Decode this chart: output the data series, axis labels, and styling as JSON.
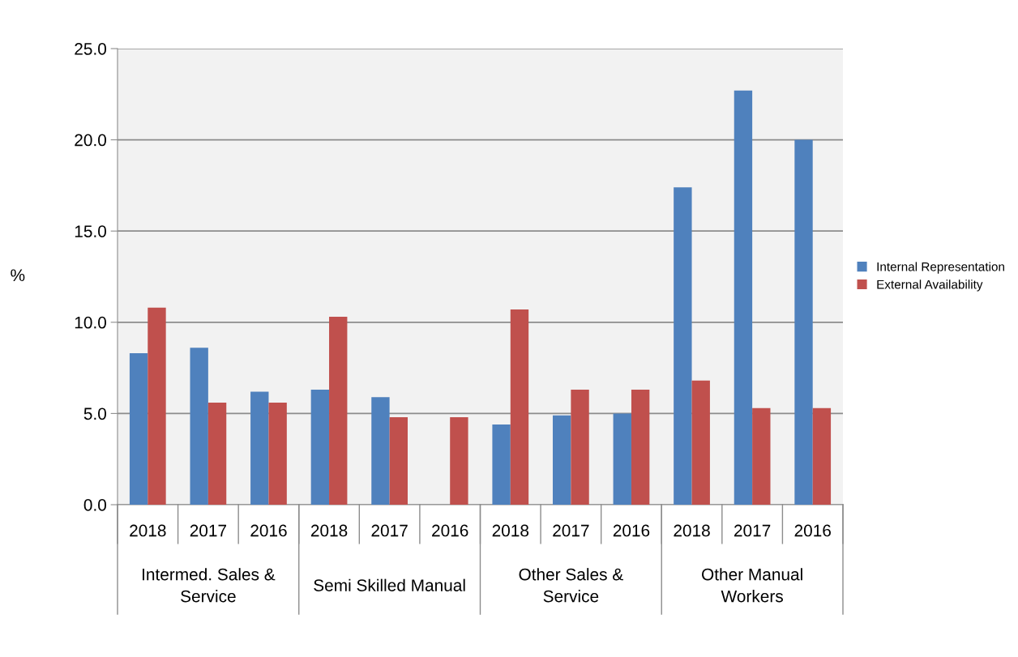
{
  "chart_data": {
    "type": "bar",
    "ylabel": "%",
    "categories": [
      "2018",
      "2017",
      "2016",
      "2018",
      "2017",
      "2016",
      "2018",
      "2017",
      "2016",
      "2018",
      "2017",
      "2016"
    ],
    "series": [
      {
        "name": "Internal Representation",
        "color": "#4f81bd",
        "values": [
          8.3,
          8.6,
          6.2,
          6.3,
          5.9,
          null,
          4.4,
          4.9,
          5.0,
          17.4,
          22.7,
          20.0
        ]
      },
      {
        "name": "External Availability",
        "color": "#c0504d",
        "values": [
          10.8,
          5.6,
          5.6,
          10.3,
          4.8,
          4.8,
          10.7,
          6.3,
          6.3,
          6.8,
          5.3,
          5.3
        ]
      }
    ],
    "annotations": [
      "Intermed. Sales &\nService",
      "Semi Skilled Manual",
      "Other Sales &\nService",
      "Other Manual\nWorkers"
    ],
    "ylim": [
      0,
      25
    ],
    "yticks": [
      {
        "value": 0,
        "label": "0.0"
      },
      {
        "value": 5,
        "label": "5.0"
      },
      {
        "value": 10,
        "label": "10.0"
      },
      {
        "value": 15,
        "label": "15.0"
      },
      {
        "value": 20,
        "label": "20.0"
      },
      {
        "value": 25,
        "label": "25.0"
      }
    ],
    "grid": "y",
    "legend": "right"
  }
}
